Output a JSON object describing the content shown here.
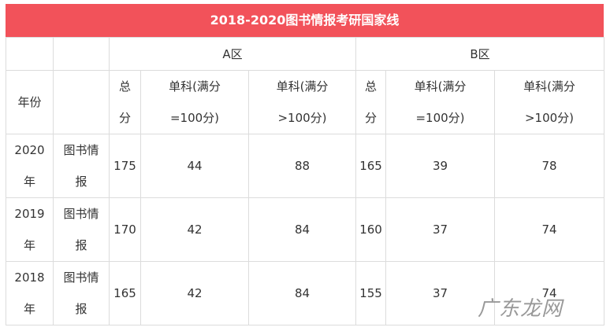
{
  "header": {
    "title": "2018-2020图书情报考研国家线"
  },
  "table": {
    "region_headers": [
      "A区",
      "B区"
    ],
    "columns": [
      "年份",
      "总分",
      "单科(满分=100分)",
      "单科(满分>100分)",
      "总分",
      "单科(满分=100分)",
      "单科(满分>100分)"
    ],
    "rows": [
      [
        "2020年",
        "图书情报",
        175,
        44,
        88,
        165,
        39,
        78
      ],
      [
        "2019年",
        "图书情报",
        170,
        42,
        84,
        160,
        37,
        74
      ],
      [
        "2018年",
        "图书情报",
        165,
        42,
        84,
        155,
        37,
        74
      ]
    ]
  },
  "watermark": "广东龙网"
}
